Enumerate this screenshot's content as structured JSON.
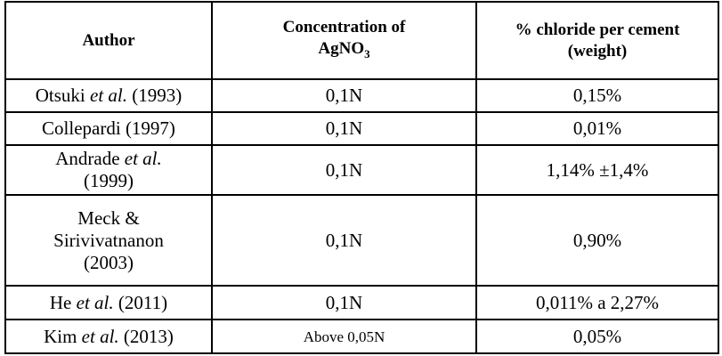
{
  "table": {
    "header": [
      [
        "Author"
      ],
      [
        "Concentration of",
        "AgNO",
        "3"
      ],
      [
        "% chloride per cement",
        "(weight)"
      ]
    ],
    "rows": [
      [
        [
          "Otsuki",
          "et al.",
          "(1993)"
        ],
        "0,1N",
        "0,15%"
      ],
      [
        [
          "Collepardi (1997)"
        ],
        "0,1N",
        "0,01%"
      ],
      [
        [
          "Andrade",
          "et al.",
          "(1999)"
        ],
        "0,1N",
        "1,14% ±1,4%"
      ],
      [
        [
          "Meck &",
          "Sirivivatnanon",
          "(2003)"
        ],
        "0,1N",
        "0,90%"
      ],
      [
        [
          "He",
          "et al.",
          "(2011)"
        ],
        "0,1N",
        "0,011% a 2,27%"
      ],
      [
        [
          "Kim",
          "et al.",
          "(2013)"
        ],
        "Above 0,05N",
        "0,05%"
      ]
    ]
  }
}
